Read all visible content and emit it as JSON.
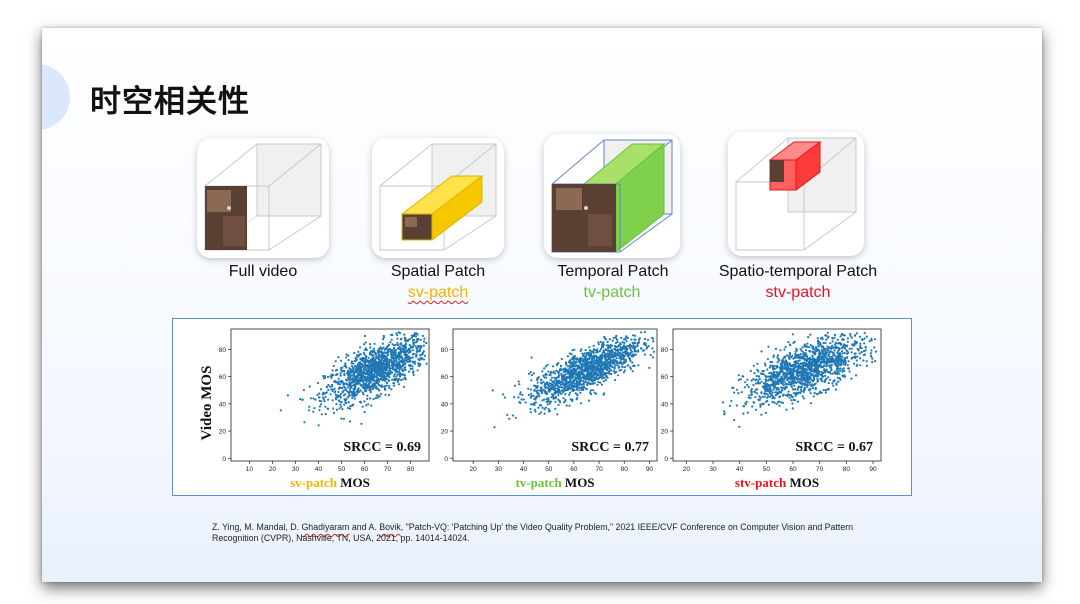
{
  "slide": {
    "title": "时空相关性"
  },
  "panels": [
    {
      "label": "Full video",
      "sublabel": "",
      "sublabel_color": "#000000",
      "highlight": "none"
    },
    {
      "label": "Spatial Patch",
      "sublabel": "sv-patch",
      "sublabel_color": "#f2b400",
      "highlight": "spatial"
    },
    {
      "label": "Temporal Patch",
      "sublabel": "tv-patch",
      "sublabel_color": "#6cc23c",
      "highlight": "temporal"
    },
    {
      "label": "Spatio-temporal Patch",
      "sublabel": "stv-patch",
      "sublabel_color": "#e8141c",
      "highlight": "spatio-temporal"
    }
  ],
  "figure": {
    "ylabel": "Video MOS",
    "point_color": "#1f77b4"
  },
  "chart_data": [
    {
      "type": "scatter",
      "title": "",
      "xlabel_prefix": "sv-patch",
      "xlabel_prefix_color": "#f2b400",
      "xlabel_suffix": "MOS",
      "ylabel": "Video MOS",
      "xticks": [
        10,
        20,
        30,
        40,
        50,
        60,
        70,
        80
      ],
      "yticks": [
        0,
        20,
        40,
        60,
        80
      ],
      "xlim": [
        2,
        88
      ],
      "ylim": [
        -2,
        95
      ],
      "annotation": "SRCC = 0.69",
      "correlation": 0.69,
      "x_center": [
        30,
        88
      ],
      "y_center": [
        30,
        90
      ]
    },
    {
      "type": "scatter",
      "title": "",
      "xlabel_prefix": "tv-patch",
      "xlabel_prefix_color": "#6cc23c",
      "xlabel_suffix": "MOS",
      "ylabel": "",
      "xticks": [
        20,
        30,
        40,
        50,
        60,
        70,
        80,
        90
      ],
      "yticks": [
        0,
        20,
        40,
        60,
        80
      ],
      "xlim": [
        12,
        93
      ],
      "ylim": [
        -2,
        95
      ],
      "annotation": "SRCC = 0.77",
      "correlation": 0.77,
      "x_center": [
        30,
        88
      ],
      "y_center": [
        30,
        90
      ]
    },
    {
      "type": "scatter",
      "title": "",
      "xlabel_prefix": "stv-patch",
      "xlabel_prefix_color": "#e8141c",
      "xlabel_suffix": "MOS",
      "ylabel": "",
      "xticks": [
        20,
        30,
        40,
        50,
        60,
        70,
        80,
        90
      ],
      "yticks": [
        0,
        20,
        40,
        60,
        80
      ],
      "xlim": [
        15,
        93
      ],
      "ylim": [
        -2,
        95
      ],
      "annotation": "SRCC = 0.67",
      "correlation": 0.67,
      "x_center": [
        32,
        85
      ],
      "y_center": [
        30,
        90
      ]
    }
  ],
  "citation": {
    "line1_before": "Z. Ying, M. Mandal, D. ",
    "line1_name": "Ghadiyaram",
    "line1_mid": " and A. ",
    "line1_name2": "Bovik",
    "line1_after": ", \"Patch-VQ: 'Patching Up' the Video Quality Problem,\" 2021 IEEE/CVF Conference on Computer Vision and Pattern",
    "line2": "Recognition (CVPR), Nashville, TN, USA, 2021, pp. 14014-14024."
  }
}
